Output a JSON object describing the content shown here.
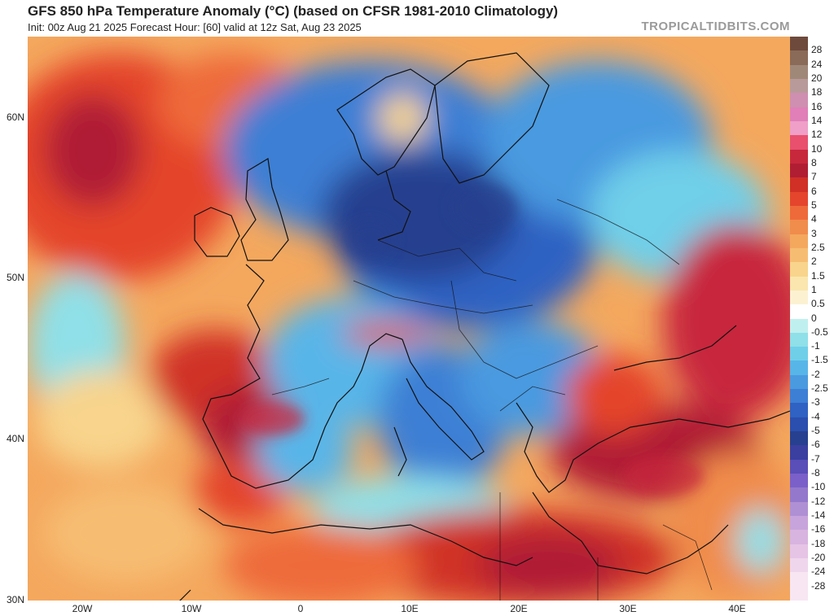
{
  "header": {
    "title": "GFS 850 hPa Temperature Anomaly (°C) (based on CFSR 1981-2010 Climatology)",
    "subtitle": "Init: 00z Aug 21 2025    Forecast Hour: [60]    valid at 12z Sat, Aug 23 2025",
    "brand": "TROPICALTIDBITS.COM"
  },
  "map": {
    "lat_labels": [
      "60N",
      "50N",
      "40N",
      "30N"
    ],
    "lon_labels": [
      "20W",
      "10W",
      "0",
      "10E",
      "20E",
      "30E",
      "40E"
    ]
  },
  "colorbar": {
    "labels": [
      "28",
      "24",
      "20",
      "18",
      "16",
      "14",
      "12",
      "10",
      "8",
      "7",
      "6",
      "5",
      "4",
      "3",
      "2.5",
      "2",
      "1.5",
      "1",
      "0.5",
      "0",
      "-0.5",
      "-1",
      "-1.5",
      "-2",
      "-2.5",
      "-3",
      "-4",
      "-5",
      "-6",
      "-7",
      "-8",
      "-10",
      "-12",
      "-14",
      "-16",
      "-18",
      "-20",
      "-24",
      "-28"
    ],
    "colors": [
      "#6e4a3c",
      "#8a6a58",
      "#a08878",
      "#b89a9a",
      "#cf8fb0",
      "#e07fb8",
      "#ef9fc8",
      "#e8506e",
      "#c8283c",
      "#b01e34",
      "#d03026",
      "#e4452c",
      "#ee6a3a",
      "#f08c4c",
      "#f4a85e",
      "#f6bd72",
      "#f8d48c",
      "#fae6ae",
      "#fcf2d2",
      "#ffffff",
      "#bff0ef",
      "#8fe0e8",
      "#6fcfe9",
      "#58b5e8",
      "#4a9ae0",
      "#3d7fd4",
      "#2f62c2",
      "#2a4fae",
      "#27408f",
      "#3a3fa0",
      "#5a4eb8",
      "#7a60c8",
      "#9478cc",
      "#b090d4",
      "#c8a4dc",
      "#d8b4e0",
      "#e6c4e6",
      "#f0d6ec",
      "#f8e6f2"
    ]
  }
}
